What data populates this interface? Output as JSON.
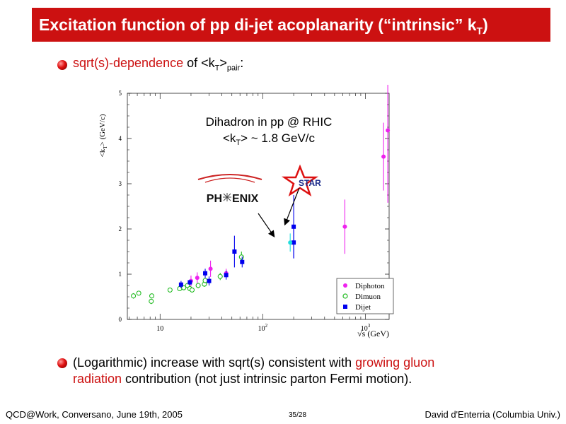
{
  "slide": {
    "title_main": "Excitation function of pp di-jet acoplanarity (“intrinsic” k",
    "title_sub": "T",
    "title_close": ")"
  },
  "bullets": [
    {
      "p1": "sqrt(s)-dependence",
      "p2": " of <k",
      "p2_sub": "T",
      "p3": ">",
      "p3_sub": "pair",
      "p4": ":"
    },
    {
      "line1_a": "(Logarithmic) increase with sqrt(s) consistent with ",
      "line1_red": "growing gluon",
      "line2_red": "radiation",
      "line2_b": " contribution (not just intrinsic parton Fermi motion)."
    }
  ],
  "footer": {
    "left": "QCD@Work, Conversano, June 19th, 2005",
    "center": "35/28",
    "right": "David d'Enterria (Columbia Univ.)"
  },
  "chart_data": {
    "type": "scatter",
    "xscale": "log",
    "xlim": [
      4.8,
      1700
    ],
    "ylim": [
      0,
      5
    ],
    "xlabel": "√s (GeV)",
    "ylabel": "<k",
    "ylabel_sub": "T",
    "ylabel_tail": "> (GeV/c)",
    "x_ticks": [
      {
        "value": 10,
        "label": "10"
      },
      {
        "value": 100,
        "label": "10",
        "sup": "2"
      },
      {
        "value": 1000,
        "label": "10",
        "sup": "3"
      }
    ],
    "y_ticks": [
      0,
      1,
      2,
      3,
      4,
      5
    ],
    "annotation_line1": "Dihadron in pp @ RHIC",
    "annotation_line2_a": "<k",
    "annotation_line2_sub": "T",
    "annotation_line2_b": "> ~ 1.8 GeV/c",
    "logo_phenix_a": "PH",
    "logo_phenix_b": "ENIX",
    "logo_star": "STAR",
    "legend_position": "bottom-right",
    "colors": {
      "diphoton": "#ee22ee",
      "dimuon": "#22bb22",
      "dijet": "#0000ee",
      "dihadron": "#22dddd"
    },
    "series": [
      {
        "name": "Diphoton",
        "marker": "filled-circle",
        "color": "#ee22ee",
        "points": [
          {
            "x": 20,
            "y": 0.85,
            "err": 0.12
          },
          {
            "x": 23,
            "y": 0.92,
            "err": 0.12
          },
          {
            "x": 31,
            "y": 1.12,
            "err": 0.18
          },
          {
            "x": 44,
            "y": 1.02,
            "err": 0.1
          },
          {
            "x": 630,
            "y": 2.05,
            "err": 0.6
          },
          {
            "x": 1500,
            "y": 3.6,
            "err": 0.75
          },
          {
            "x": 1650,
            "y": 4.18,
            "err": 1.6
          }
        ]
      },
      {
        "name": "Dimuon",
        "marker": "open-circle",
        "color": "#22bb22",
        "points": [
          {
            "x": 5.5,
            "y": 0.52,
            "err": 0.06
          },
          {
            "x": 6.2,
            "y": 0.58,
            "err": 0.05
          },
          {
            "x": 8.2,
            "y": 0.4,
            "err": 0.06
          },
          {
            "x": 8.3,
            "y": 0.52,
            "err": 0.05
          },
          {
            "x": 12.5,
            "y": 0.65,
            "err": 0.05
          },
          {
            "x": 15.5,
            "y": 0.68,
            "err": 0.05
          },
          {
            "x": 17,
            "y": 0.7,
            "err": 0.05
          },
          {
            "x": 18.5,
            "y": 0.75,
            "err": 0.06
          },
          {
            "x": 19.5,
            "y": 0.68,
            "err": 0.05
          },
          {
            "x": 20.5,
            "y": 0.65,
            "err": 0.05
          },
          {
            "x": 23.5,
            "y": 0.75,
            "err": 0.06
          },
          {
            "x": 27,
            "y": 0.78,
            "err": 0.06
          },
          {
            "x": 27.5,
            "y": 0.86,
            "err": 0.06
          },
          {
            "x": 38.5,
            "y": 0.95,
            "err": 0.08
          },
          {
            "x": 62,
            "y": 1.38,
            "err": 0.12
          }
        ]
      },
      {
        "name": "Dijet",
        "marker": "filled-square",
        "color": "#0000ee",
        "points": [
          {
            "x": 16,
            "y": 0.77,
            "err": 0.08
          },
          {
            "x": 19.5,
            "y": 0.82,
            "err": 0.06
          },
          {
            "x": 27.5,
            "y": 1.02,
            "err": 0.1
          },
          {
            "x": 30,
            "y": 0.85,
            "err": 0.1
          },
          {
            "x": 44,
            "y": 0.98,
            "err": 0.1
          },
          {
            "x": 53,
            "y": 1.5,
            "err": 0.35
          },
          {
            "x": 63,
            "y": 1.27,
            "err": 0.12
          },
          {
            "x": 200,
            "y": 1.7,
            "err": 0.35
          },
          {
            "x": 200,
            "y": 2.05,
            "err": 0.7
          }
        ]
      },
      {
        "name": "Dihadron in pp @ RHIC",
        "marker": "filled-circle",
        "color": "#22dddd",
        "points": [
          {
            "x": 185,
            "y": 1.7,
            "err": 0.2
          }
        ]
      }
    ],
    "legend_entries": [
      "Diphoton",
      "Dimuon",
      "Dijet"
    ]
  }
}
